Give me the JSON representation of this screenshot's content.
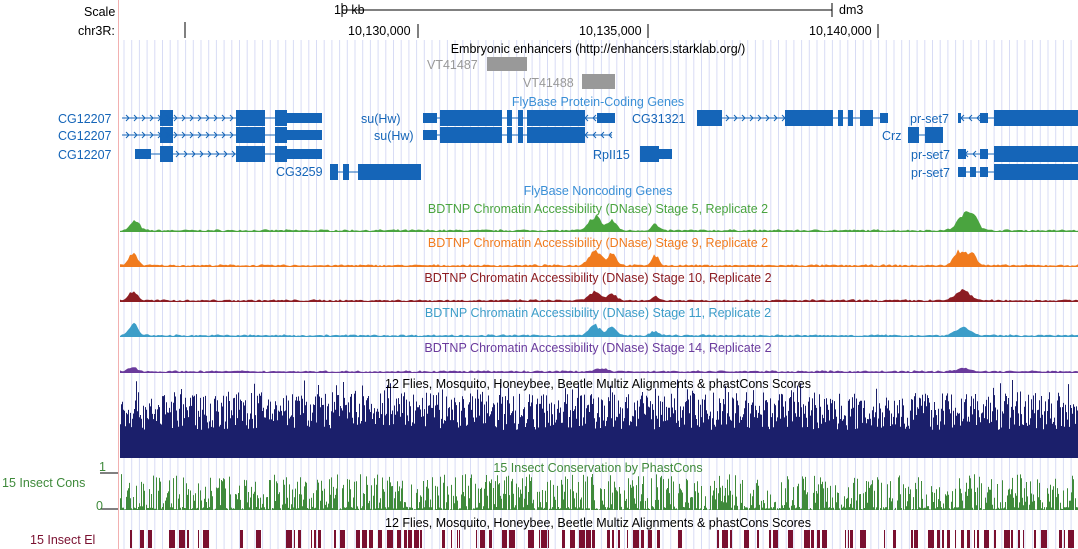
{
  "ruler": {
    "scale_label": "Scale",
    "chrom_label": "chr3R:",
    "scale_bar_text": "10 kb",
    "assembly": "dm3",
    "positions": [
      "10,130,000",
      "10,135,000",
      "10,140,000"
    ]
  },
  "tracks": {
    "enhancers": {
      "title": "Embryonic enhancers (http://enhancers.starklab.org/)",
      "items": [
        "VT41487",
        "VT41488"
      ],
      "color": "#999999"
    },
    "protein_coding": {
      "title": "FlyBase Protein-Coding Genes",
      "color": "#1565b8",
      "genes": [
        "CG12207",
        "CG12207",
        "CG12207",
        "CG3259",
        "su(Hw)",
        "su(Hw)",
        "RpII15",
        "CG31321",
        "Crz",
        "pr-set7",
        "pr-set7",
        "pr-set7"
      ]
    },
    "noncoding": {
      "title": "FlyBase Noncoding Genes",
      "color": "#3a8fd6"
    },
    "dnase": [
      {
        "title": "BDTNP Chromatin Accessibility (DNase) Stage 5, Replicate 2",
        "color": "#4aa43f"
      },
      {
        "title": "BDTNP Chromatin Accessibility (DNase) Stage 9, Replicate 2",
        "color": "#f07b1e"
      },
      {
        "title": "BDTNP Chromatin Accessibility (DNase) Stage 10, Replicate 2",
        "color": "#8c1c22"
      },
      {
        "title": "BDTNP Chromatin Accessibility (DNase) Stage 11, Replicate 2",
        "color": "#3c9dc8"
      },
      {
        "title": "BDTNP Chromatin Accessibility (DNase) Stage 14, Replicate 2",
        "color": "#6a3a9c"
      }
    ],
    "multiz": {
      "title": "12 Flies, Mosquito, Honeybee, Beetle Multiz Alignments & phastCons Scores",
      "color": "#1b1f6b"
    },
    "phastcons": {
      "title": "15 Insect Conservation by PhastCons",
      "left_label": "15 Insect Cons",
      "max_label": "1",
      "min_label": "0",
      "color": "#3f8a3b"
    },
    "elements": {
      "title": "12 Flies, Mosquito, Honeybee, Beetle Multiz Alignments & phastCons Scores",
      "left_label": "15 Insect El",
      "color": "#7a1030"
    }
  }
}
